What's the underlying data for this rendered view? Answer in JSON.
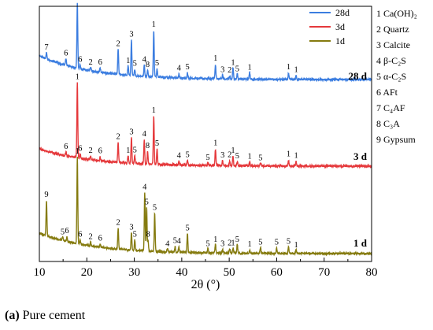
{
  "chart_data": {
    "type": "line",
    "title": "",
    "xlabel": "2θ (°)",
    "ylabel": "",
    "xlim": [
      10,
      80
    ],
    "xticks": [
      10,
      20,
      30,
      40,
      50,
      60,
      70,
      80
    ],
    "grid": false,
    "legend_position": "top-right",
    "y_axis_values_shown": false,
    "series": [
      {
        "name": "28d",
        "color": "#3b7de0",
        "end_label": "28 d",
        "peaks": [
          {
            "x": 11.5,
            "label": "7"
          },
          {
            "x": 15.6,
            "label": "6"
          },
          {
            "x": 18.0,
            "label": "1"
          },
          {
            "x": 18.6,
            "label": "6"
          },
          {
            "x": 20.8,
            "label": "2"
          },
          {
            "x": 22.8,
            "label": "6"
          },
          {
            "x": 26.6,
            "label": "2"
          },
          {
            "x": 28.7,
            "label": "1"
          },
          {
            "x": 29.4,
            "label": "3"
          },
          {
            "x": 30.1,
            "label": "5"
          },
          {
            "x": 32.1,
            "label": "4"
          },
          {
            "x": 32.8,
            "label": "8"
          },
          {
            "x": 34.1,
            "label": "1"
          },
          {
            "x": 34.8,
            "label": "5"
          },
          {
            "x": 39.4,
            "label": "4"
          },
          {
            "x": 41.2,
            "label": "5"
          },
          {
            "x": 47.1,
            "label": "1"
          },
          {
            "x": 48.6,
            "label": "3"
          },
          {
            "x": 50.1,
            "label": "2"
          },
          {
            "x": 50.8,
            "label": "1"
          },
          {
            "x": 51.7,
            "label": "5"
          },
          {
            "x": 54.3,
            "label": "1"
          },
          {
            "x": 62.5,
            "label": "1"
          },
          {
            "x": 64.1,
            "label": "1"
          }
        ]
      },
      {
        "name": "3d",
        "color": "#e5383b",
        "end_label": "3 d",
        "peaks": [
          {
            "x": 15.6,
            "label": "6"
          },
          {
            "x": 18.0,
            "label": "1"
          },
          {
            "x": 18.6,
            "label": "6"
          },
          {
            "x": 20.8,
            "label": "2"
          },
          {
            "x": 22.8,
            "label": "6"
          },
          {
            "x": 26.6,
            "label": "2"
          },
          {
            "x": 28.7,
            "label": "1"
          },
          {
            "x": 29.4,
            "label": "3"
          },
          {
            "x": 30.1,
            "label": "5"
          },
          {
            "x": 32.1,
            "label": "4"
          },
          {
            "x": 32.8,
            "label": "8"
          },
          {
            "x": 34.1,
            "label": "1"
          },
          {
            "x": 34.8,
            "label": "5"
          },
          {
            "x": 39.4,
            "label": "4"
          },
          {
            "x": 41.2,
            "label": "5"
          },
          {
            "x": 45.5,
            "label": "5"
          },
          {
            "x": 47.1,
            "label": "1"
          },
          {
            "x": 48.6,
            "label": "3"
          },
          {
            "x": 50.1,
            "label": "2"
          },
          {
            "x": 50.8,
            "label": "1"
          },
          {
            "x": 51.7,
            "label": "5"
          },
          {
            "x": 54.3,
            "label": "1"
          },
          {
            "x": 56.6,
            "label": "5"
          },
          {
            "x": 62.5,
            "label": "1"
          },
          {
            "x": 64.1,
            "label": "1"
          }
        ]
      },
      {
        "name": "1d",
        "color": "#857b0f",
        "end_label": "1 d",
        "peaks": [
          {
            "x": 11.5,
            "label": "9"
          },
          {
            "x": 14.9,
            "label": "5"
          },
          {
            "x": 15.8,
            "label": "6"
          },
          {
            "x": 18.0,
            "label": "1"
          },
          {
            "x": 18.6,
            "label": "6"
          },
          {
            "x": 20.8,
            "label": "2"
          },
          {
            "x": 22.8,
            "label": "6"
          },
          {
            "x": 26.6,
            "label": "2"
          },
          {
            "x": 29.4,
            "label": "3"
          },
          {
            "x": 30.1,
            "label": "5"
          },
          {
            "x": 32.2,
            "label": "4"
          },
          {
            "x": 32.6,
            "label": "5"
          },
          {
            "x": 32.9,
            "label": "8"
          },
          {
            "x": 34.3,
            "label": "5"
          },
          {
            "x": 37.0,
            "label": "4"
          },
          {
            "x": 38.6,
            "label": "5"
          },
          {
            "x": 39.4,
            "label": "4"
          },
          {
            "x": 41.2,
            "label": "5"
          },
          {
            "x": 45.5,
            "label": "5"
          },
          {
            "x": 47.1,
            "label": "1"
          },
          {
            "x": 48.6,
            "label": "3"
          },
          {
            "x": 50.1,
            "label": "2"
          },
          {
            "x": 50.8,
            "label": "1"
          },
          {
            "x": 51.7,
            "label": "5"
          },
          {
            "x": 54.3,
            "label": "1"
          },
          {
            "x": 56.6,
            "label": "5"
          },
          {
            "x": 60.0,
            "label": "5"
          },
          {
            "x": 62.5,
            "label": "5"
          },
          {
            "x": 64.1,
            "label": "1"
          }
        ]
      }
    ],
    "phase_key": [
      "1 Ca(OH)₂",
      "2 Quartz",
      "3 Calcite",
      "4 β-C₂S",
      "5 α-C₂S",
      "6 AFt",
      "7 C₄AF",
      "8 C₃A",
      "9 Gypsum"
    ]
  },
  "caption": {
    "tag": "(a)",
    "text": " Pure cement"
  }
}
